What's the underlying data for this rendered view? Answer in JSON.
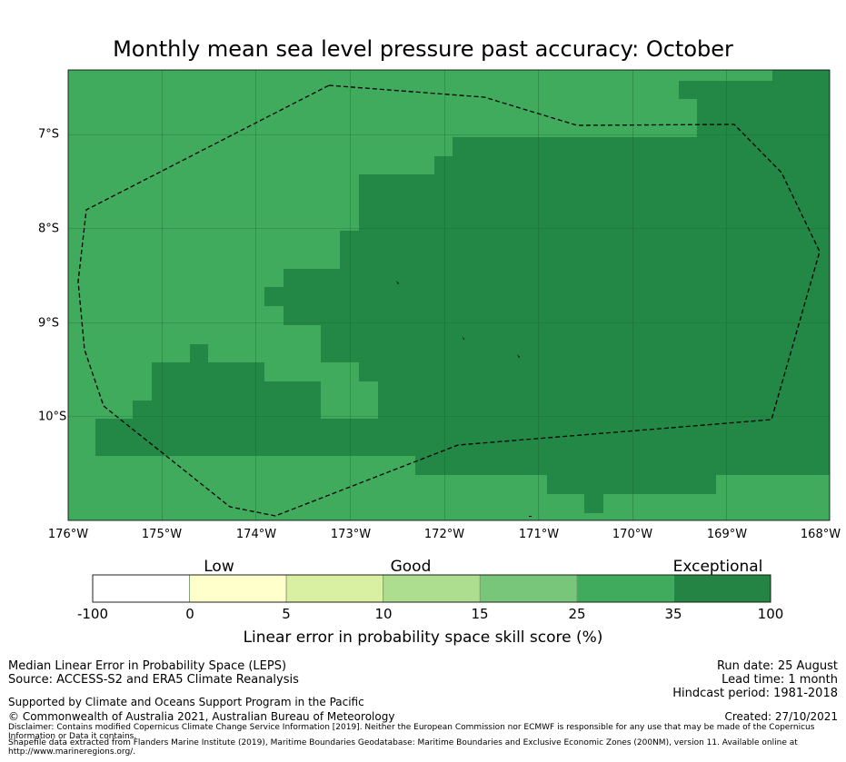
{
  "title": "Monthly mean sea level pressure past accuracy: October",
  "map": {
    "lon_labels": [
      "176°W",
      "175°W",
      "174°W",
      "173°W",
      "172°W",
      "171°W",
      "170°W",
      "169°W",
      "168°W"
    ],
    "lat_labels": [
      "7°S",
      "8°S",
      "9°S",
      "10°S"
    ],
    "colors": {
      "category_35_100": "#238745",
      "category_25_35": "#41ab5d",
      "eez_boundary": "#000000"
    }
  },
  "colorbar": {
    "categories": [
      "Low",
      "Good",
      "Exceptional"
    ],
    "ticks": [
      "-100",
      "0",
      "5",
      "10",
      "15",
      "25",
      "35",
      "100"
    ],
    "colors": [
      "#ffffff",
      "#ffffcc",
      "#d9f0a3",
      "#addd8e",
      "#78c679",
      "#41ab5d",
      "#238443"
    ],
    "label": "Linear error in probability space skill score (%)"
  },
  "footer": {
    "left_line1": "Median Linear Error in Probability Space (LEPS)",
    "left_line2": "Source: ACCESS-S2 and ERA5 Climate Reanalysis",
    "support": "Supported by Climate and Oceans Support Program in the Pacific",
    "copyright": "© Commonwealth of Australia 2021, Australian Bureau of Meteorology",
    "run_date": "Run date: 25 August",
    "lead_time": "Lead time: 1 month",
    "hindcast": "Hindcast period: 1981-2018",
    "created": "Created: 27/10/2021",
    "disclaimer": "Disclaimer: Contains modified Copernicus Climate Change Service Information [2019]. Neither the European Commission nor ECMWF is responsible for any use that may be made of the Copernicus Information or Data it contains.",
    "shapefile": "Shapefile data extracted from Flanders Marine Institute (2019), Maritime Boundaries Geodatabase: Maritime Boundaries and Exclusive Economic Zones (200NM), version 11. Available online at http://www.marineregions.org/."
  }
}
